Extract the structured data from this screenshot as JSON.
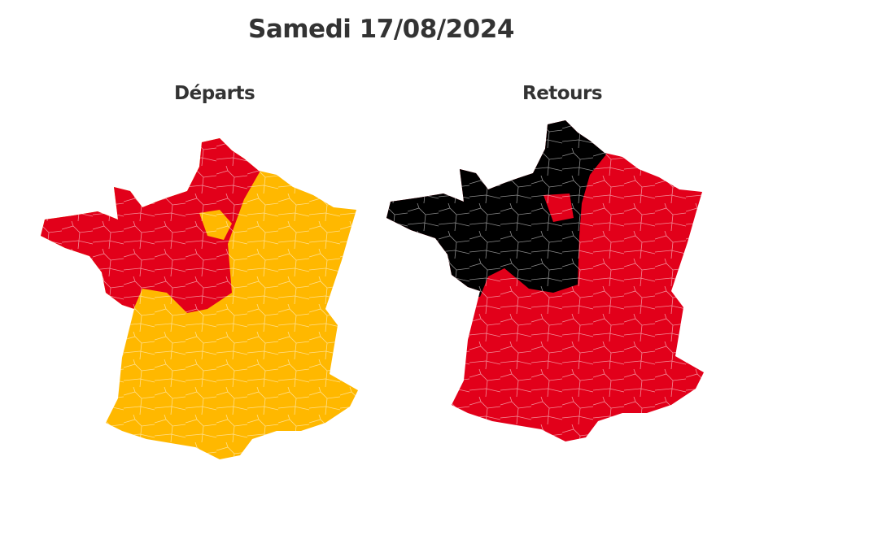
{
  "title": "Samedi 17/08/2024",
  "maps": [
    {
      "label": "Départs",
      "base_color": "#ffb800",
      "zones": [
        {
          "level": "red",
          "color": "#e2001a",
          "area": "north-west"
        },
        {
          "level": "orange",
          "color": "#ffb800",
          "area": "ile-de-france"
        }
      ]
    },
    {
      "label": "Retours",
      "base_color": "#e2001a",
      "zones": [
        {
          "level": "black",
          "color": "#000000",
          "area": "north-west"
        },
        {
          "level": "red",
          "color": "#e2001a",
          "area": "ile-de-france"
        }
      ]
    }
  ],
  "border_color": "#ffffff"
}
